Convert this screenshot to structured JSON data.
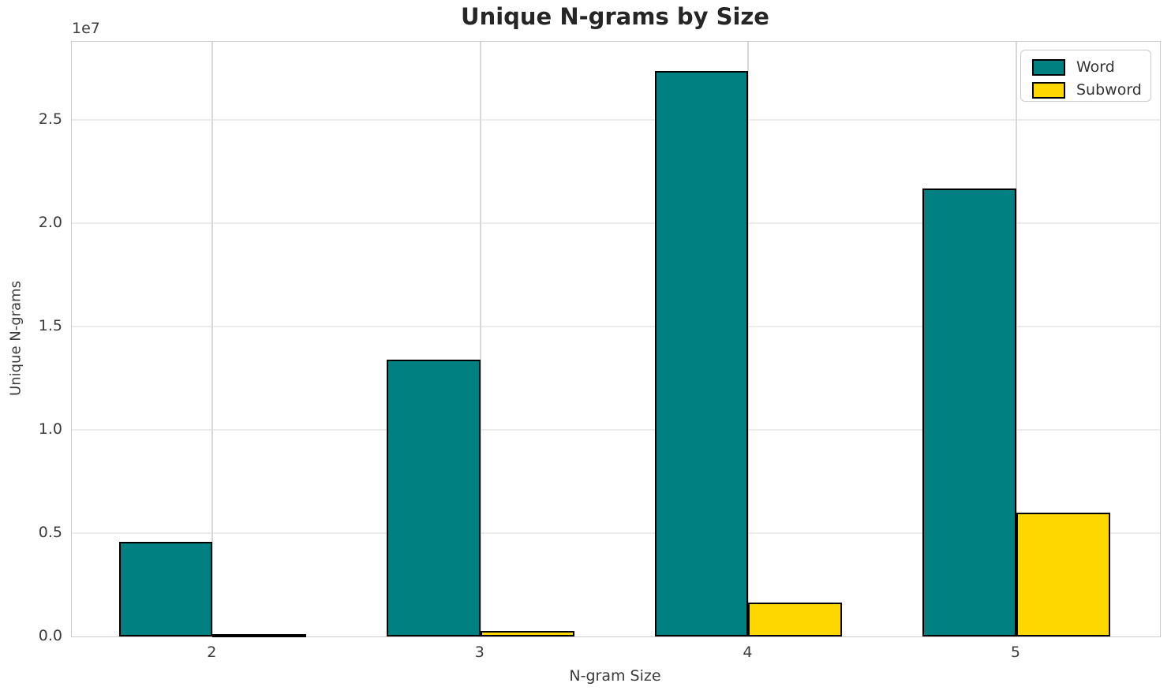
{
  "chart_data": {
    "type": "bar",
    "title": "Unique N-grams by Size",
    "xlabel": "N-gram Size",
    "ylabel": "Unique N-grams",
    "y_offset_label": "1e7",
    "categories": [
      "2",
      "3",
      "4",
      "5"
    ],
    "series": [
      {
        "name": "Word",
        "color": "#008080",
        "values": [
          4600000,
          13400000,
          27400000,
          21700000
        ]
      },
      {
        "name": "Subword",
        "color": "#FFD700",
        "values": [
          40000,
          250000,
          1640000,
          6000000
        ]
      }
    ],
    "bar_edge_color": "#000000",
    "y_ticks": [
      {
        "label": "0.0",
        "value": 0
      },
      {
        "label": "0.5",
        "value": 5000000
      },
      {
        "label": "1.0",
        "value": 10000000
      },
      {
        "label": "1.5",
        "value": 15000000
      },
      {
        "label": "2.0",
        "value": 20000000
      },
      {
        "label": "2.5",
        "value": 25000000
      }
    ],
    "ylim": [
      0,
      28800000
    ],
    "grid": true,
    "legend_position": "upper right"
  }
}
